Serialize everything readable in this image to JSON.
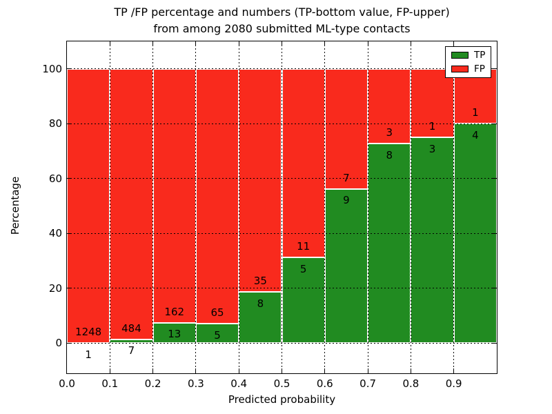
{
  "title": {
    "line1": "TP /FP percentage and numbers (TP-bottom value, FP-upper)",
    "line2": "from among 2080 submitted ML-type contacts"
  },
  "colors": {
    "tp_green": "#218b21",
    "fp_red": "#f92a1d",
    "bar_edge": "#ffffff",
    "grid": "#000000"
  },
  "legend": {
    "position": "upper right",
    "entries": [
      {
        "label": "TP",
        "color": "#218b21"
      },
      {
        "label": "FP",
        "color": "#f92a1d"
      }
    ]
  },
  "chart_data": {
    "type": "bar",
    "stacked": true,
    "normalized_to_percent": true,
    "title": "TP /FP percentage and numbers (TP-bottom value, FP-upper)\nfrom among 2080 submitted ML-type contacts",
    "xlabel": "Predicted probability",
    "ylabel": "Percentage",
    "xlim": [
      0.0,
      1.0
    ],
    "ylim": [
      -11,
      110
    ],
    "bin_width": 0.1,
    "grid": "dotted",
    "total_contacts": 2080,
    "categories": [
      "0.0-0.1",
      "0.1-0.2",
      "0.2-0.3",
      "0.3-0.4",
      "0.4-0.5",
      "0.5-0.6",
      "0.6-0.7",
      "0.7-0.8",
      "0.8-0.9",
      "0.9-1.0"
    ],
    "series": [
      {
        "name": "TP",
        "color": "#218b21",
        "counts": [
          1,
          7,
          13,
          5,
          8,
          5,
          9,
          8,
          3,
          4
        ]
      },
      {
        "name": "FP",
        "color": "#f92a1d",
        "counts": [
          1248,
          484,
          162,
          65,
          35,
          11,
          7,
          3,
          1,
          1
        ]
      }
    ],
    "tp_percent_of_bin": [
      0.08,
      1.43,
      7.43,
      7.14,
      18.6,
      31.25,
      56.25,
      72.73,
      75.0,
      80.0
    ],
    "x_ticks": [
      "0.0",
      "0.1",
      "0.2",
      "0.3",
      "0.4",
      "0.5",
      "0.6",
      "0.7",
      "0.8",
      "0.9"
    ],
    "y_ticks": [
      0,
      20,
      40,
      60,
      80,
      100
    ]
  }
}
